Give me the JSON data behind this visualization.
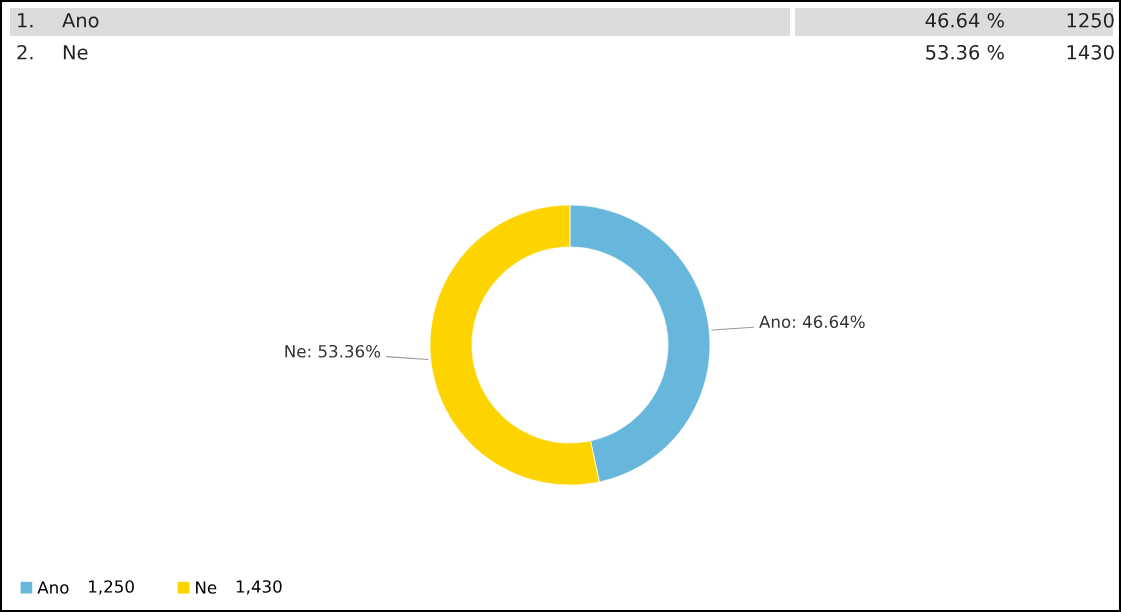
{
  "chart_data": {
    "type": "donut",
    "categories": [
      "Ano",
      "Ne"
    ],
    "values": [
      46.64,
      53.36
    ],
    "colors": [
      "#67b7dc",
      "#fdd400"
    ],
    "value_labels": [
      "Ano: 46.64%",
      "Ne: 53.36%"
    ],
    "legend": "bottom left",
    "annotations": [
      "1.",
      "Ano",
      "46.64 %",
      "1250",
      "2.",
      "Ne",
      "53.36 %",
      "1430",
      "1,250",
      "1,430"
    ]
  }
}
